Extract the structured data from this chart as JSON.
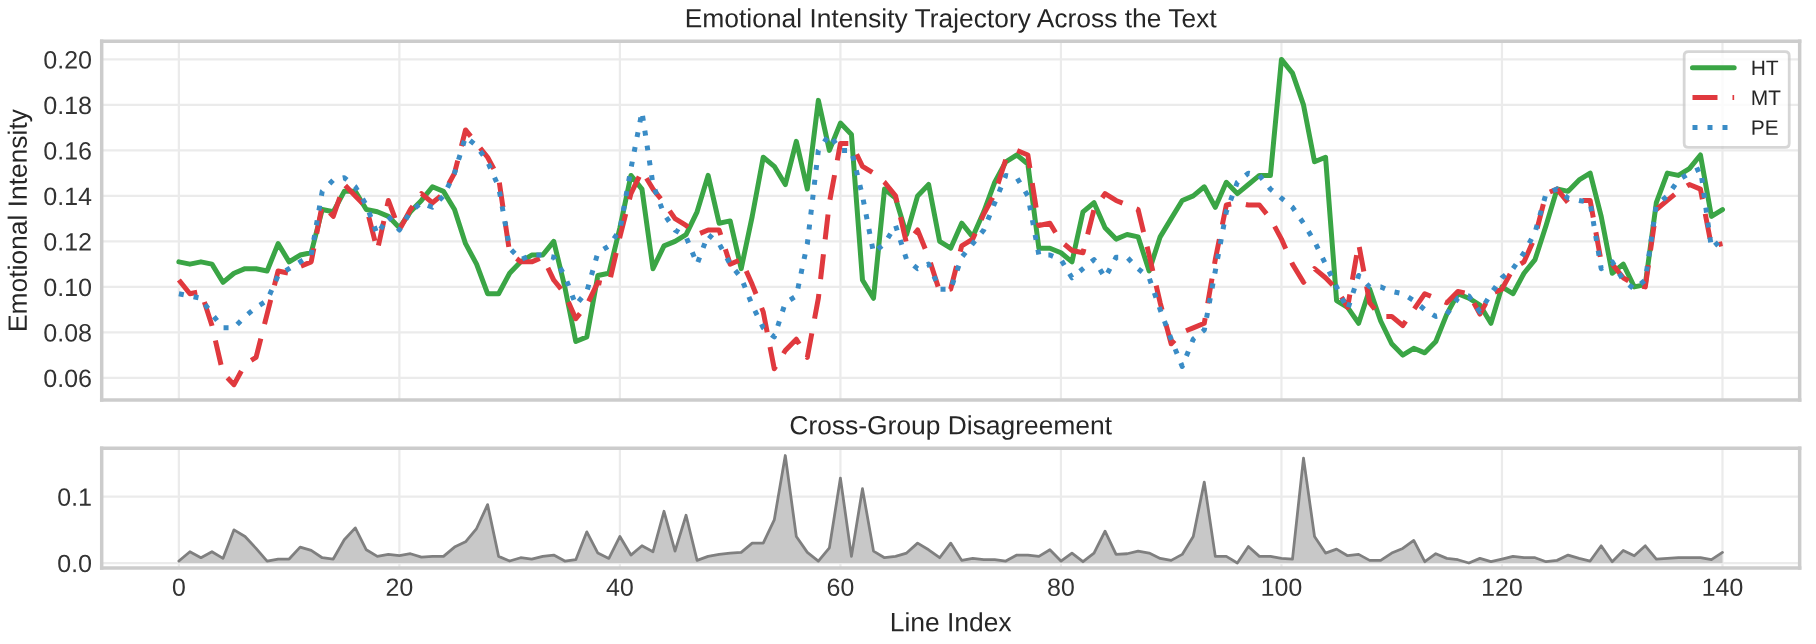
{
  "chart_data": [
    {
      "type": "line",
      "title": "Emotional Intensity Trajectory Across the Text",
      "ylabel": "Emotional Intensity",
      "x": [
        0,
        1,
        2,
        3,
        4,
        5,
        6,
        7,
        8,
        9,
        10,
        11,
        12,
        13,
        14,
        15,
        16,
        17,
        18,
        19,
        20,
        21,
        22,
        23,
        24,
        25,
        26,
        27,
        28,
        29,
        30,
        31,
        32,
        33,
        34,
        35,
        36,
        37,
        38,
        39,
        40,
        41,
        42,
        43,
        44,
        45,
        46,
        47,
        48,
        49,
        50,
        51,
        52,
        53,
        54,
        55,
        56,
        57,
        58,
        59,
        60,
        61,
        62,
        63,
        64,
        65,
        66,
        67,
        68,
        69,
        70,
        71,
        72,
        73,
        74,
        75,
        76,
        77,
        78,
        79,
        80,
        81,
        82,
        83,
        84,
        85,
        86,
        87,
        88,
        89,
        90,
        91,
        92,
        93,
        94,
        95,
        96,
        97,
        98,
        99,
        100,
        101,
        102,
        103,
        104,
        105,
        106,
        107,
        108,
        109,
        110,
        111,
        112,
        113,
        114,
        115,
        116,
        117,
        118,
        119,
        120,
        121,
        122,
        123,
        124,
        125,
        126,
        127,
        128,
        129,
        130,
        131,
        132,
        133,
        134,
        135,
        136,
        137,
        138,
        139,
        140
      ],
      "series": [
        {
          "name": "HT",
          "color": "#3aa545",
          "line_style": "solid",
          "values": [
            0.111,
            0.11,
            0.111,
            0.11,
            0.102,
            0.106,
            0.108,
            0.108,
            0.107,
            0.119,
            0.111,
            0.114,
            0.115,
            0.134,
            0.133,
            0.142,
            0.142,
            0.134,
            0.133,
            0.131,
            0.126,
            0.133,
            0.138,
            0.144,
            0.142,
            0.134,
            0.119,
            0.11,
            0.097,
            0.097,
            0.106,
            0.111,
            0.114,
            0.114,
            0.12,
            0.1,
            0.076,
            0.078,
            0.105,
            0.106,
            0.126,
            0.149,
            0.143,
            0.108,
            0.118,
            0.12,
            0.123,
            0.133,
            0.149,
            0.128,
            0.129,
            0.108,
            0.131,
            0.157,
            0.153,
            0.145,
            0.164,
            0.143,
            0.182,
            0.16,
            0.172,
            0.167,
            0.103,
            0.095,
            0.143,
            0.139,
            0.123,
            0.14,
            0.145,
            0.12,
            0.117,
            0.128,
            0.122,
            0.133,
            0.146,
            0.155,
            0.158,
            0.154,
            0.117,
            0.117,
            0.115,
            0.111,
            0.133,
            0.137,
            0.126,
            0.121,
            0.123,
            0.122,
            0.107,
            0.122,
            0.13,
            0.138,
            0.14,
            0.144,
            0.135,
            0.146,
            0.141,
            0.145,
            0.149,
            0.149,
            0.2,
            0.194,
            0.18,
            0.155,
            0.157,
            0.094,
            0.091,
            0.084,
            0.099,
            0.085,
            0.075,
            0.07,
            0.073,
            0.071,
            0.076,
            0.088,
            0.097,
            0.095,
            0.092,
            0.084,
            0.1,
            0.097,
            0.106,
            0.112,
            0.127,
            0.143,
            0.142,
            0.147,
            0.15,
            0.131,
            0.106,
            0.11,
            0.1,
            0.101,
            0.137,
            0.15,
            0.149,
            0.152,
            0.158,
            0.131,
            0.134
          ]
        },
        {
          "name": "MT",
          "color": "#e0393e",
          "line_style": "dashed",
          "values": [
            0.103,
            0.097,
            0.098,
            0.083,
            0.062,
            0.057,
            0.066,
            0.069,
            0.088,
            0.107,
            0.106,
            0.109,
            0.111,
            0.136,
            0.131,
            0.145,
            0.14,
            0.135,
            0.116,
            0.138,
            0.125,
            0.134,
            0.141,
            0.137,
            0.141,
            0.15,
            0.169,
            0.163,
            0.157,
            0.148,
            0.115,
            0.111,
            0.111,
            0.113,
            0.103,
            0.097,
            0.086,
            0.092,
            0.102,
            0.101,
            0.122,
            0.141,
            0.151,
            0.143,
            0.137,
            0.13,
            0.127,
            0.123,
            0.125,
            0.125,
            0.11,
            0.112,
            0.101,
            0.089,
            0.064,
            0.072,
            0.077,
            0.069,
            0.095,
            0.137,
            0.163,
            0.163,
            0.153,
            0.15,
            0.146,
            0.14,
            0.119,
            0.125,
            0.113,
            0.098,
            0.099,
            0.118,
            0.121,
            0.132,
            0.141,
            0.156,
            0.16,
            0.158,
            0.127,
            0.128,
            0.12,
            0.116,
            0.115,
            0.134,
            0.141,
            0.138,
            0.136,
            0.134,
            0.114,
            0.093,
            0.075,
            0.08,
            0.082,
            0.084,
            0.112,
            0.136,
            0.137,
            0.136,
            0.136,
            0.13,
            0.121,
            0.11,
            0.102,
            0.108,
            0.104,
            0.099,
            0.091,
            0.119,
            0.093,
            0.087,
            0.087,
            0.083,
            0.09,
            0.097,
            0.095,
            0.093,
            0.098,
            0.097,
            0.088,
            0.097,
            0.099,
            0.108,
            0.111,
            0.122,
            0.141,
            0.143,
            0.137,
            0.138,
            0.138,
            0.111,
            0.11,
            0.104,
            0.101,
            0.1,
            0.134,
            0.138,
            0.142,
            0.145,
            0.143,
            0.118,
            0.119
          ]
        },
        {
          "name": "PE",
          "color": "#3a8cc6",
          "line_style": "dotted",
          "values": [
            0.097,
            0.096,
            0.095,
            0.088,
            0.082,
            0.082,
            0.087,
            0.091,
            0.094,
            0.105,
            0.108,
            0.111,
            0.114,
            0.142,
            0.147,
            0.148,
            0.144,
            0.136,
            0.123,
            0.131,
            0.125,
            0.133,
            0.137,
            0.135,
            0.14,
            0.15,
            0.166,
            0.162,
            0.155,
            0.144,
            0.117,
            0.112,
            0.114,
            0.114,
            0.113,
            0.105,
            0.092,
            0.098,
            0.115,
            0.118,
            0.125,
            0.152,
            0.177,
            0.145,
            0.132,
            0.125,
            0.122,
            0.11,
            0.123,
            0.119,
            0.11,
            0.104,
            0.092,
            0.082,
            0.078,
            0.093,
            0.096,
            0.119,
            0.16,
            0.167,
            0.16,
            0.16,
            0.14,
            0.115,
            0.119,
            0.127,
            0.112,
            0.108,
            0.11,
            0.099,
            0.099,
            0.113,
            0.119,
            0.125,
            0.137,
            0.149,
            0.148,
            0.14,
            0.114,
            0.114,
            0.112,
            0.104,
            0.108,
            0.112,
            0.104,
            0.113,
            0.113,
            0.108,
            0.104,
            0.09,
            0.077,
            0.065,
            0.077,
            0.081,
            0.107,
            0.133,
            0.146,
            0.15,
            0.149,
            0.143,
            0.139,
            0.135,
            0.128,
            0.12,
            0.11,
            0.1,
            0.09,
            0.105,
            0.1,
            0.1,
            0.098,
            0.097,
            0.094,
            0.09,
            0.087,
            0.088,
            0.095,
            0.096,
            0.089,
            0.097,
            0.104,
            0.108,
            0.115,
            0.124,
            0.141,
            0.143,
            0.139,
            0.138,
            0.137,
            0.108,
            0.111,
            0.103,
            0.099,
            0.103,
            0.136,
            0.14,
            0.147,
            0.15,
            0.152,
            0.117,
            0.121
          ]
        }
      ],
      "xlim": [
        -7,
        147
      ],
      "xticks": [
        0,
        20,
        40,
        60,
        80,
        100,
        120,
        140
      ],
      "ylim": [
        0.0503,
        0.208
      ],
      "yticks": [
        {
          "value": 0.06,
          "label": "0.06"
        },
        {
          "value": 0.08,
          "label": "0.08"
        },
        {
          "value": 0.1,
          "label": "0.10"
        },
        {
          "value": 0.12,
          "label": "0.12"
        },
        {
          "value": 0.14,
          "label": "0.14"
        },
        {
          "value": 0.16,
          "label": "0.16"
        },
        {
          "value": 0.18,
          "label": "0.18"
        },
        {
          "value": 0.2,
          "label": "0.20"
        }
      ],
      "tick_labels": "y",
      "grid": true,
      "legend": "top right"
    },
    {
      "type": "area",
      "title": "Cross-Group Disagreement",
      "xlabel": "Line Index",
      "x": [
        0,
        1,
        2,
        3,
        4,
        5,
        6,
        7,
        8,
        9,
        10,
        11,
        12,
        13,
        14,
        15,
        16,
        17,
        18,
        19,
        20,
        21,
        22,
        23,
        24,
        25,
        26,
        27,
        28,
        29,
        30,
        31,
        32,
        33,
        34,
        35,
        36,
        37,
        38,
        39,
        40,
        41,
        42,
        43,
        44,
        45,
        46,
        47,
        48,
        49,
        50,
        51,
        52,
        53,
        54,
        55,
        56,
        57,
        58,
        59,
        60,
        61,
        62,
        63,
        64,
        65,
        66,
        67,
        68,
        69,
        70,
        71,
        72,
        73,
        74,
        75,
        76,
        77,
        78,
        79,
        80,
        81,
        82,
        83,
        84,
        85,
        86,
        87,
        88,
        89,
        90,
        91,
        92,
        93,
        94,
        95,
        96,
        97,
        98,
        99,
        100,
        101,
        102,
        103,
        104,
        105,
        106,
        107,
        108,
        109,
        110,
        111,
        112,
        113,
        114,
        115,
        116,
        117,
        118,
        119,
        120,
        121,
        122,
        123,
        124,
        125,
        126,
        127,
        128,
        129,
        130,
        131,
        132,
        133,
        134,
        135,
        136,
        137,
        138,
        139,
        140
      ],
      "series": [
        {
          "color": "#c8c8c8",
          "values": [
            0.003,
            0.017,
            0.008,
            0.017,
            0.007,
            0.05,
            0.04,
            0.022,
            0.003,
            0.006,
            0.006,
            0.024,
            0.019,
            0.008,
            0.006,
            0.035,
            0.053,
            0.02,
            0.01,
            0.013,
            0.011,
            0.014,
            0.009,
            0.01,
            0.01,
            0.024,
            0.032,
            0.052,
            0.088,
            0.01,
            0.003,
            0.008,
            0.006,
            0.01,
            0.012,
            0.003,
            0.005,
            0.047,
            0.015,
            0.007,
            0.04,
            0.012,
            0.026,
            0.017,
            0.078,
            0.018,
            0.072,
            0.004,
            0.01,
            0.013,
            0.015,
            0.016,
            0.03,
            0.03,
            0.065,
            0.162,
            0.04,
            0.016,
            0.003,
            0.023,
            0.128,
            0.01,
            0.112,
            0.018,
            0.008,
            0.01,
            0.015,
            0.03,
            0.02,
            0.008,
            0.03,
            0.004,
            0.007,
            0.005,
            0.005,
            0.003,
            0.012,
            0.012,
            0.01,
            0.02,
            0.003,
            0.015,
            0.002,
            0.015,
            0.048,
            0.013,
            0.014,
            0.018,
            0.015,
            0.007,
            0.004,
            0.013,
            0.04,
            0.122,
            0.01,
            0.01,
            0.0,
            0.025,
            0.01,
            0.01,
            0.007,
            0.006,
            0.158,
            0.04,
            0.015,
            0.021,
            0.011,
            0.013,
            0.004,
            0.004,
            0.015,
            0.022,
            0.034,
            0.002,
            0.014,
            0.007,
            0.005,
            0.0,
            0.007,
            0.002,
            0.006,
            0.01,
            0.008,
            0.008,
            0.002,
            0.004,
            0.012,
            0.007,
            0.003,
            0.026,
            0.002,
            0.019,
            0.011,
            0.026,
            0.006,
            0.007,
            0.008,
            0.008,
            0.008,
            0.005,
            0.016
          ]
        }
      ],
      "xlim": [
        -7,
        147
      ],
      "xticks": [
        0,
        20,
        40,
        60,
        80,
        100,
        120,
        140
      ],
      "ylim": [
        -0.0075,
        0.173
      ],
      "yticks": [
        {
          "value": 0.0,
          "label": "0.0"
        },
        {
          "value": 0.1,
          "label": "0.1"
        }
      ],
      "grid": true
    }
  ]
}
